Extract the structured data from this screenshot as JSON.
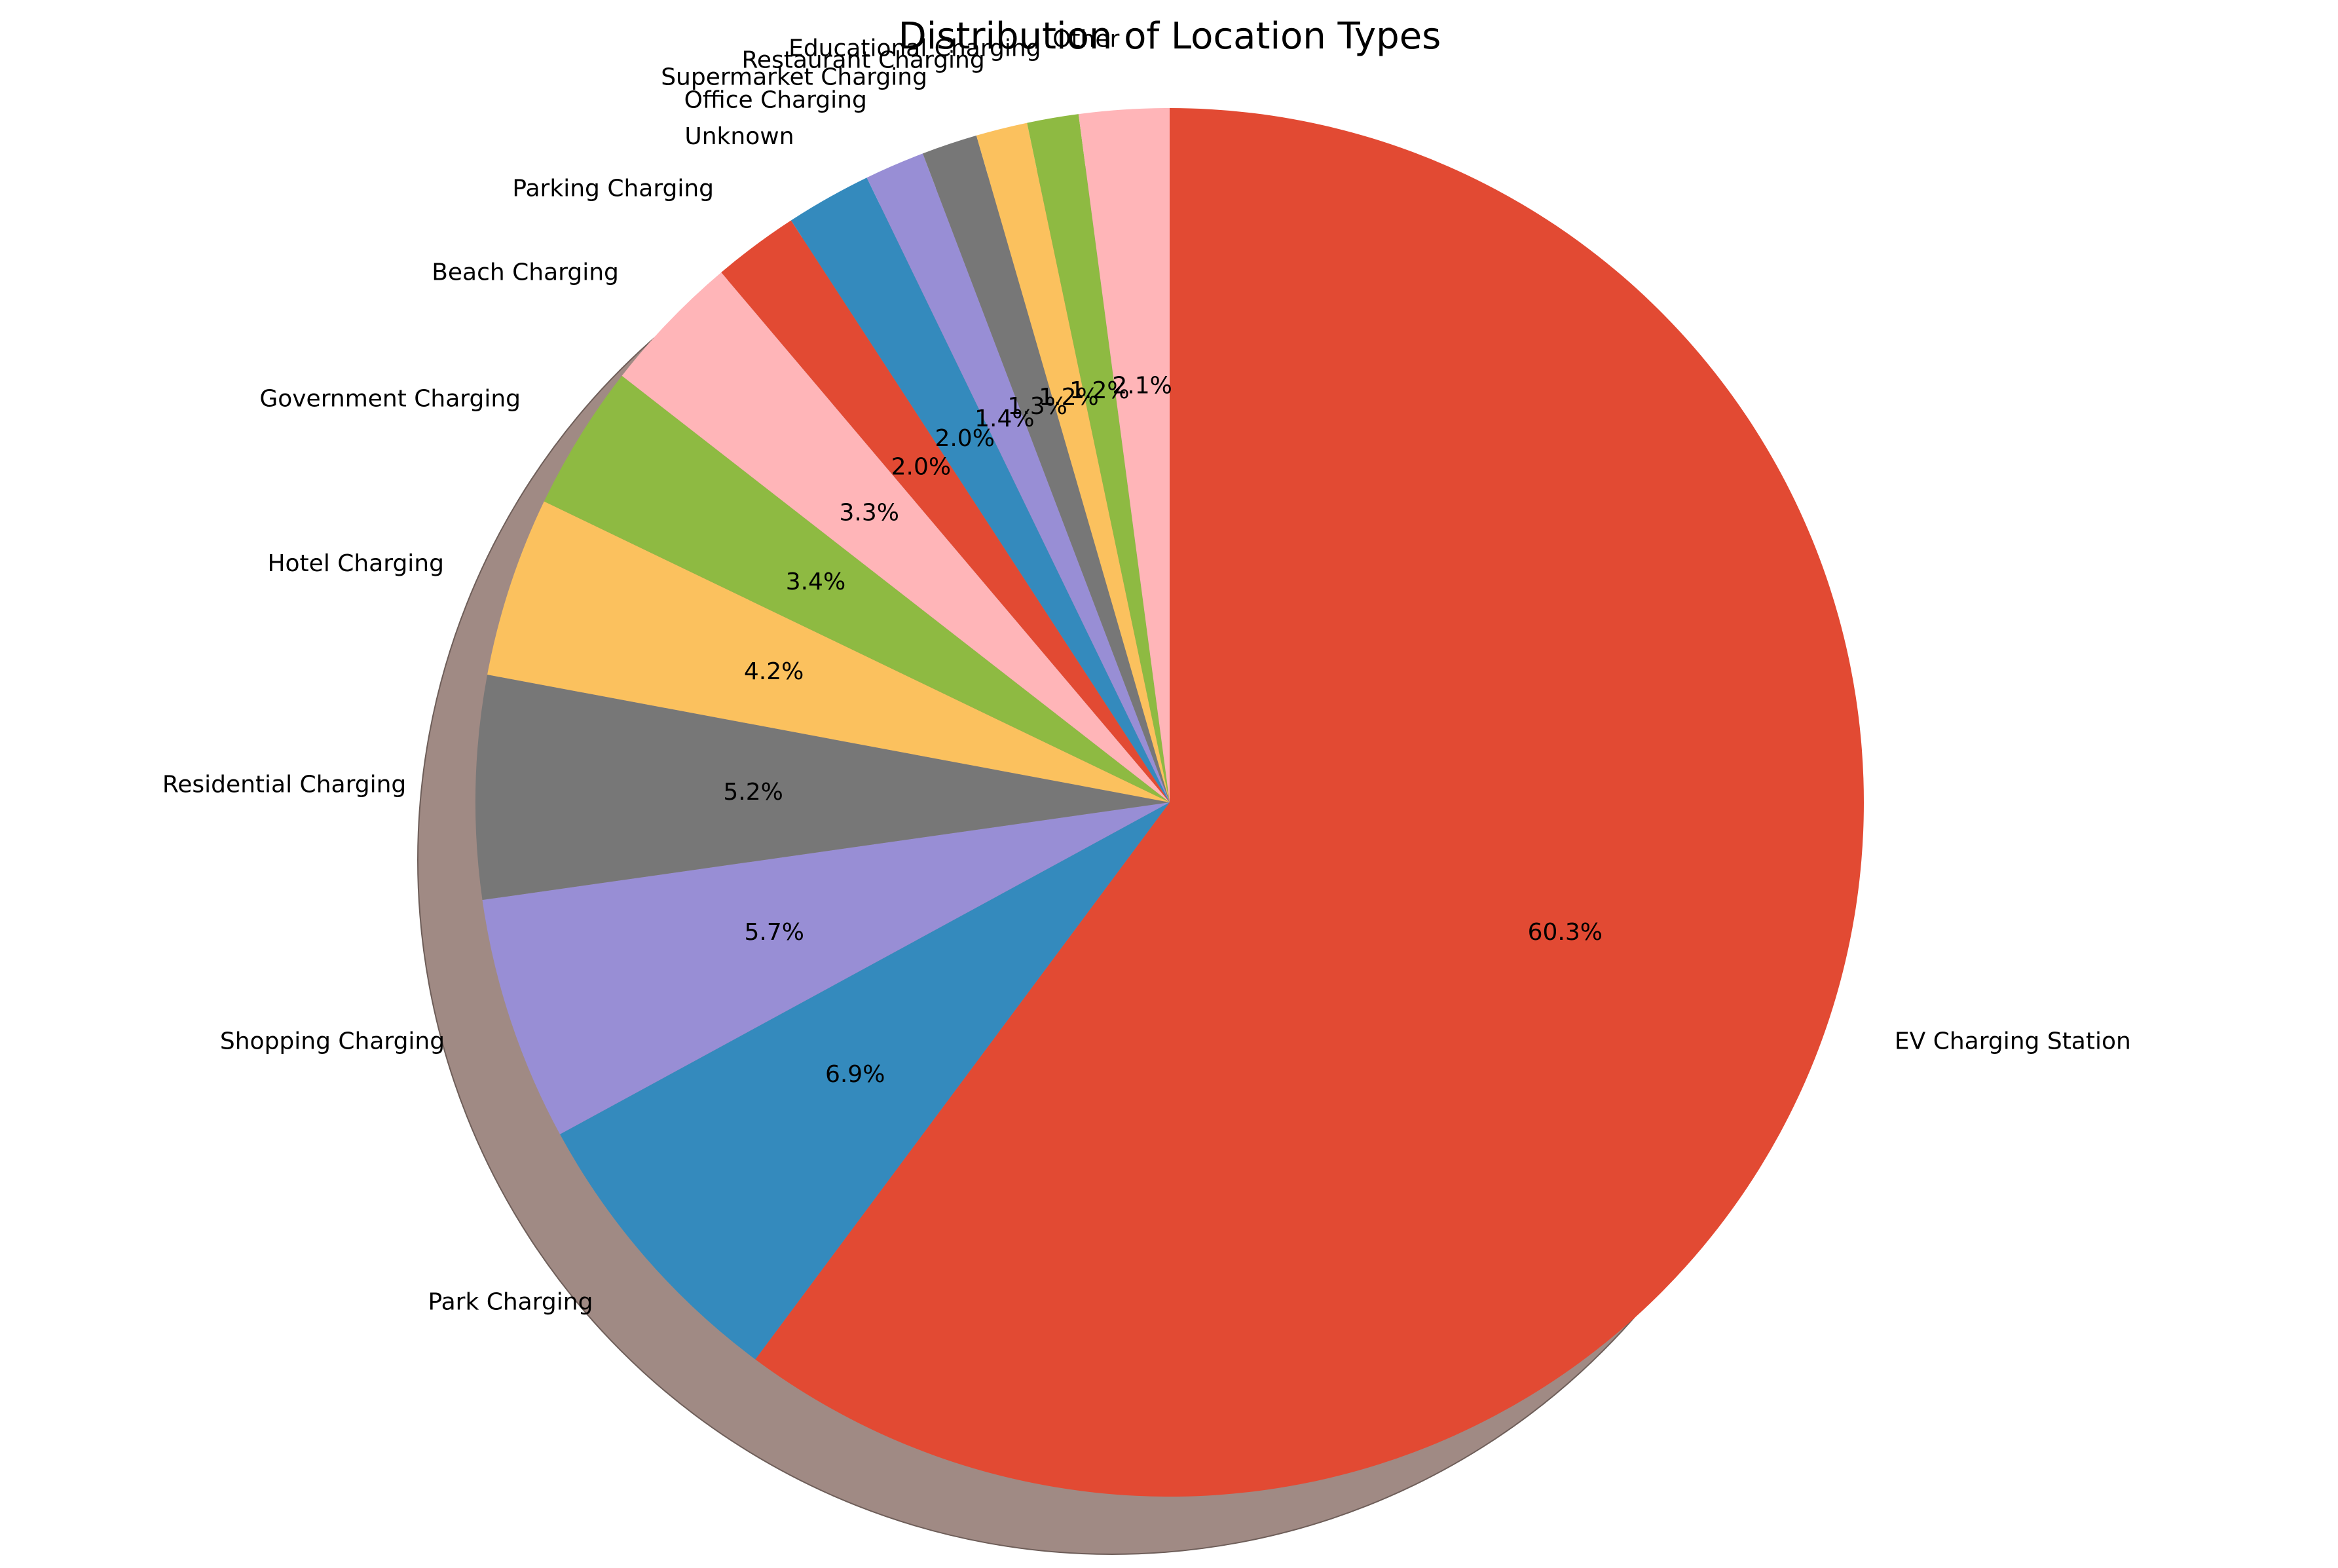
{
  "chart_data": {
    "type": "pie",
    "title": "Distribution of Location Types",
    "start_angle_deg": 90,
    "direction": "clockwise",
    "shadow": true,
    "slices": [
      {
        "label": "EV Charging Station",
        "value": 60.3,
        "pct_label": "60.3%",
        "color": "#E24A33"
      },
      {
        "label": "Park Charging",
        "value": 6.9,
        "pct_label": "6.9%",
        "color": "#348ABD"
      },
      {
        "label": "Shopping Charging",
        "value": 5.7,
        "pct_label": "5.7%",
        "color": "#988ED5"
      },
      {
        "label": "Residential Charging",
        "value": 5.2,
        "pct_label": "5.2%",
        "color": "#777777"
      },
      {
        "label": "Hotel Charging",
        "value": 4.2,
        "pct_label": "4.2%",
        "color": "#FBC15E"
      },
      {
        "label": "Government Charging",
        "value": 3.4,
        "pct_label": "3.4%",
        "color": "#8EBA42"
      },
      {
        "label": "Beach Charging",
        "value": 3.3,
        "pct_label": "3.3%",
        "color": "#FFB5B8"
      },
      {
        "label": "Parking Charging",
        "value": 2.0,
        "pct_label": "2.0%",
        "color": "#E24A33"
      },
      {
        "label": "Unknown",
        "value": 2.0,
        "pct_label": "2.0%",
        "color": "#348ABD"
      },
      {
        "label": "Office Charging",
        "value": 1.4,
        "pct_label": "1.4%",
        "color": "#988ED5"
      },
      {
        "label": "Supermarket Charging",
        "value": 1.3,
        "pct_label": "1.3%",
        "color": "#777777"
      },
      {
        "label": "Restaurant Charging",
        "value": 1.2,
        "pct_label": "1.2%",
        "color": "#FBC15E"
      },
      {
        "label": "Educational Charging",
        "value": 1.2,
        "pct_label": "1.2%",
        "color": "#8EBA42"
      },
      {
        "label": "Other",
        "value": 2.1,
        "pct_label": "2.1%",
        "color": "#FFB5B8"
      }
    ]
  }
}
